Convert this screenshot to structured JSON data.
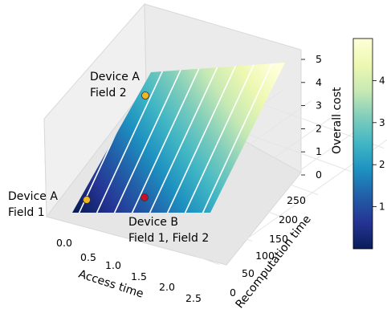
{
  "chart_data": {
    "type": "surface3d",
    "xlabel": "Access time",
    "ylabel": "Recomputation time",
    "zlabel": "Overall cost",
    "x_ticks": [
      "0.0",
      "0.5",
      "1.0",
      "1.5",
      "2.0",
      "2.5"
    ],
    "y_ticks": [
      "0",
      "50",
      "100",
      "150",
      "200",
      "250"
    ],
    "z_ticks": [
      "0",
      "1",
      "2",
      "3",
      "4",
      "5"
    ],
    "xlim": [
      0,
      2.6
    ],
    "ylim": [
      0,
      280
    ],
    "zlim": [
      0,
      5
    ],
    "colormap": "YlGnBu_r",
    "colorbar": {
      "ticks": [
        "1",
        "2",
        "3",
        "4"
      ],
      "range": [
        0,
        5
      ]
    },
    "surface": {
      "x_range": [
        0,
        2.4
      ],
      "y_range": [
        0,
        260
      ],
      "z_min": 0.1,
      "z_max": 4.9,
      "contour_levels": 14
    },
    "points": [
      {
        "label_lines": [
          "Device A",
          "Field 1"
        ],
        "x": 0.05,
        "y": 10,
        "z": 0.15,
        "color": "#f2b620"
      },
      {
        "label_lines": [
          "Device A",
          "Field 2"
        ],
        "x": 0.75,
        "y": 215,
        "z": 2.6,
        "color": "#f2b620"
      },
      {
        "label_lines": [
          "Device B",
          "Field 1, Field 2"
        ],
        "x": 0.95,
        "y": 15,
        "z": 1.0,
        "color": "#c8102e"
      }
    ],
    "grid": true,
    "colors": {
      "surface_low": "#081d58",
      "surface_high": "#ffffd9",
      "contour": "#ffffff",
      "pane": "#f2f2f2",
      "pane_edge": "#d9d9d9",
      "grid": "#e5e5e5"
    }
  }
}
